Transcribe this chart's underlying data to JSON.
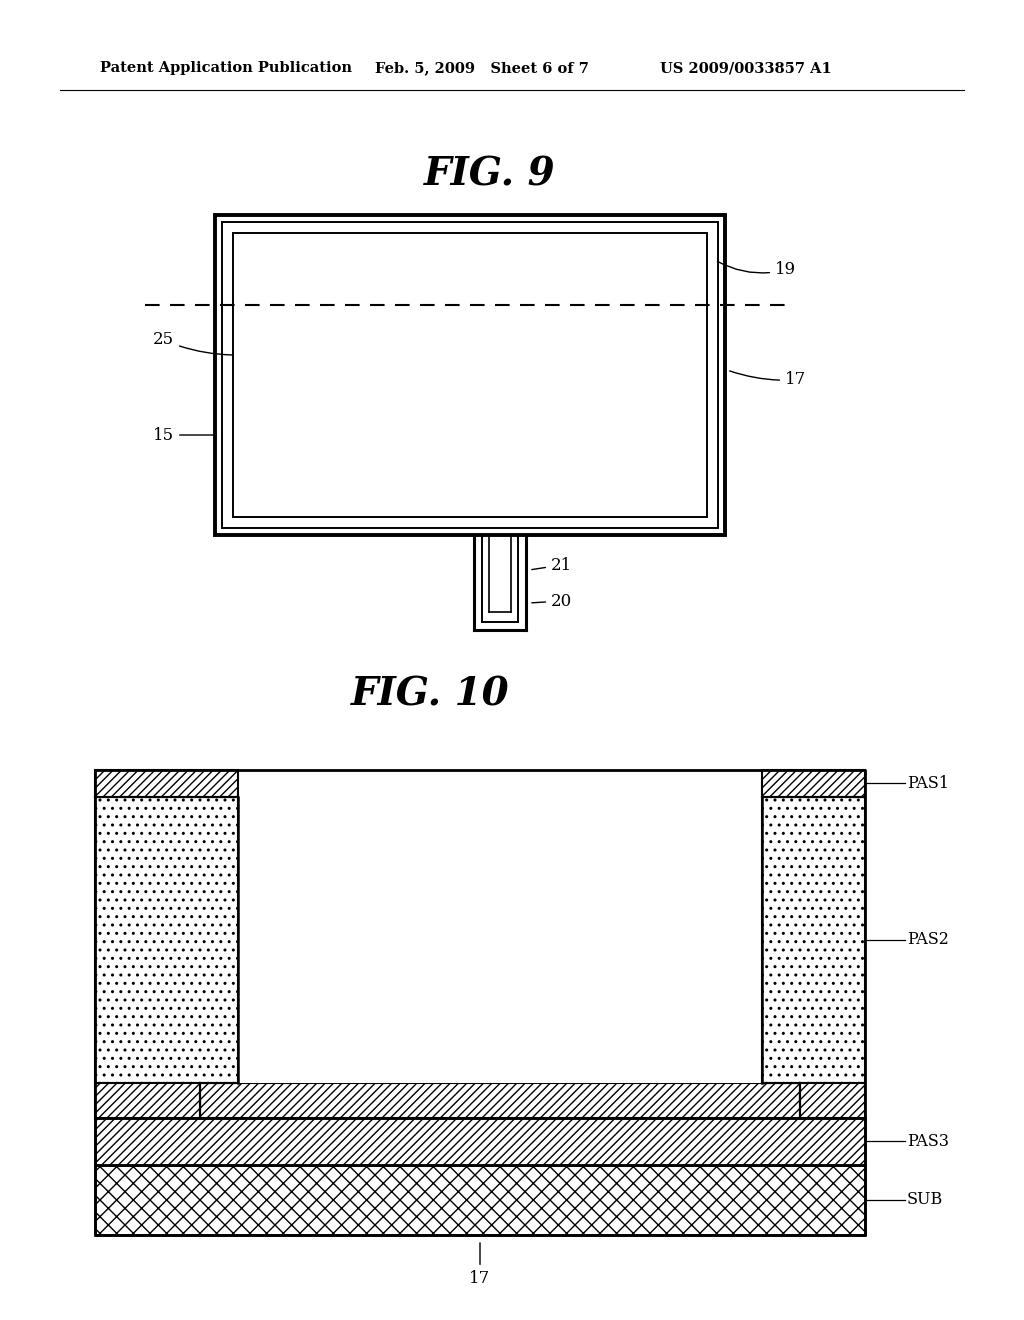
{
  "bg_color": "#ffffff",
  "header_left": "Patent Application Publication",
  "header_mid": "Feb. 5, 2009   Sheet 6 of 7",
  "header_right": "US 2009/0033857 A1",
  "fig9_title": "FIG. 9",
  "fig10_title": "FIG. 10",
  "lc": "#000000"
}
